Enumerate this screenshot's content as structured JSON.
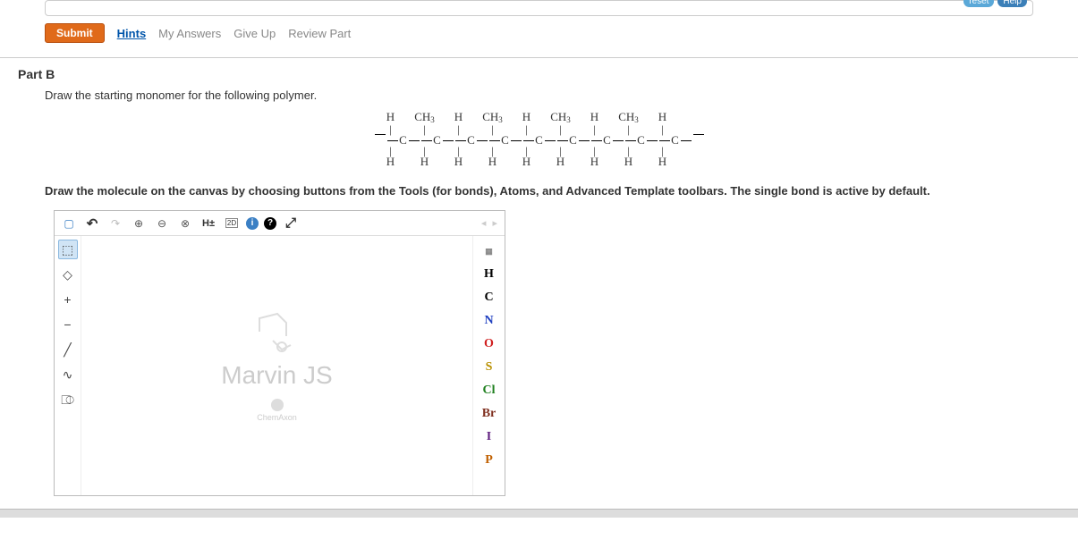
{
  "top": {
    "reset_label": "reset",
    "help_label": "Help"
  },
  "actions": {
    "submit": "Submit",
    "hints": "Hints",
    "my_answers": "My Answers",
    "give_up": "Give Up",
    "review_part": "Review Part"
  },
  "part": {
    "label": "Part B",
    "prompt": "Draw the starting monomer for the following polymer.",
    "instruction": "Draw the molecule on the canvas by choosing buttons from the Tools (for bonds), Atoms, and Advanced Template toolbars. The single bond is active by default."
  },
  "polymer": {
    "units": [
      {
        "top": "H",
        "bottom": "H"
      },
      {
        "top": "CH3",
        "bottom": "H"
      },
      {
        "top": "H",
        "bottom": "H"
      },
      {
        "top": "CH3",
        "bottom": "H"
      },
      {
        "top": "H",
        "bottom": "H"
      },
      {
        "top": "CH3",
        "bottom": "H"
      },
      {
        "top": "H",
        "bottom": "H"
      },
      {
        "top": "CH3",
        "bottom": "H"
      },
      {
        "top": "H",
        "bottom": "H"
      }
    ],
    "backbone": "C"
  },
  "editor": {
    "brand": "Marvin JS",
    "vendor": "ChemAxon",
    "top_tools": [
      {
        "name": "new-icon",
        "glyph": "▢",
        "color": "#3a7fc4"
      },
      {
        "name": "undo-icon",
        "glyph": "↶",
        "color": "#333"
      },
      {
        "name": "redo-icon",
        "glyph": "↷",
        "color": "#bbb"
      },
      {
        "name": "zoom-in-icon",
        "glyph": "⊕",
        "color": "#555"
      },
      {
        "name": "zoom-out-icon",
        "glyph": "⊖",
        "color": "#555"
      },
      {
        "name": "zoom-reset-icon",
        "glyph": "⊗",
        "color": "#555"
      },
      {
        "name": "hydrogen-toggle-icon",
        "glyph": "H±",
        "color": "#333"
      },
      {
        "name": "clean2d-icon",
        "glyph": "2D",
        "color": "#333"
      },
      {
        "name": "info-icon",
        "glyph": "i",
        "color": "#fff"
      },
      {
        "name": "help-icon",
        "glyph": "?",
        "color": "#fff"
      },
      {
        "name": "fullscreen-icon",
        "glyph": "⤢",
        "color": "#333"
      }
    ],
    "left_tools": [
      {
        "name": "select-tool-icon",
        "glyph": "⬚",
        "selected": true
      },
      {
        "name": "erase-tool-icon",
        "glyph": "◇",
        "selected": false
      },
      {
        "name": "charge-plus-icon",
        "glyph": "+",
        "selected": false
      },
      {
        "name": "charge-minus-icon",
        "glyph": "−",
        "selected": false
      },
      {
        "name": "bond-tool-icon",
        "glyph": "╱",
        "selected": false
      },
      {
        "name": "chain-tool-icon",
        "glyph": "∿",
        "selected": false
      },
      {
        "name": "template-tool-icon",
        "glyph": "⎄",
        "selected": false
      }
    ],
    "atoms": [
      {
        "name": "periodic-table-icon",
        "label": "▦",
        "color": "#888",
        "periodic": true
      },
      {
        "name": "atom-h",
        "label": "H",
        "color": "#000000"
      },
      {
        "name": "atom-c",
        "label": "C",
        "color": "#000000"
      },
      {
        "name": "atom-n",
        "label": "N",
        "color": "#2040c0"
      },
      {
        "name": "atom-o",
        "label": "O",
        "color": "#d02020"
      },
      {
        "name": "atom-s",
        "label": "S",
        "color": "#b89000"
      },
      {
        "name": "atom-cl",
        "label": "Cl",
        "color": "#208020"
      },
      {
        "name": "atom-br",
        "label": "Br",
        "color": "#803020"
      },
      {
        "name": "atom-i",
        "label": "I",
        "color": "#602080"
      },
      {
        "name": "atom-p",
        "label": "P",
        "color": "#c06000"
      }
    ]
  }
}
